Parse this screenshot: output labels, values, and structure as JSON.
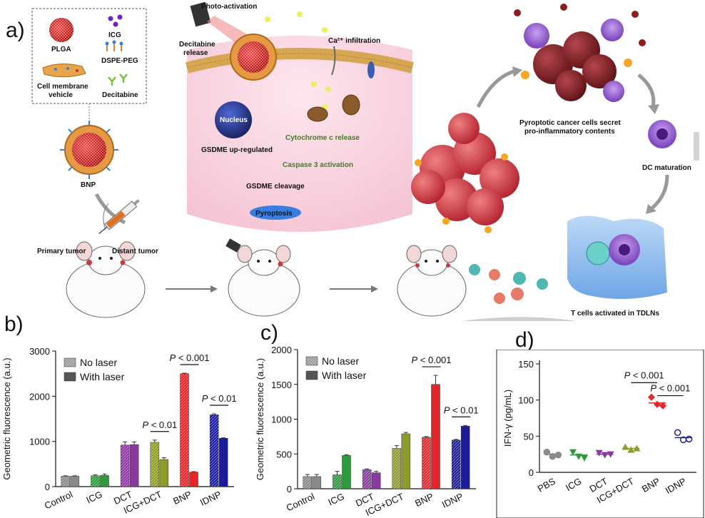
{
  "schematic": {
    "panel_label": "a)",
    "legend_box": {
      "items": [
        "PLGA",
        "ICG",
        "DSPE-PEG",
        "Cell membrane vehicle",
        "Decitabine"
      ]
    },
    "nanoparticle_label": "BNP",
    "mouse1": {
      "primary": "Primary tumor",
      "distant": "Distant tumor"
    },
    "cell_panel": {
      "photo": "Photo-activation",
      "decitabine": "Decitabine release",
      "calcium": "Ca²⁺ infiltration",
      "nucleus": "Nucleus",
      "gsdme_up": "GSDME up-regulated",
      "cytc": "Cytochrome c release",
      "casp": "Caspase 3 activation",
      "cleavage": "GSDME cleavage",
      "pyro": "Pyroptosis"
    },
    "cycle": {
      "secrete_1": "Pyroptotic cancer cells secret",
      "secrete_2": "pro-inflammatory contents",
      "dc": "DC maturation",
      "tcells": "T cells activated in TDLNs"
    }
  },
  "chart_data": [
    {
      "id": "b",
      "panel_label": "b)",
      "type": "bar",
      "ylabel": "Geometric fluorescence (a.u.)",
      "ylim": [
        0,
        3000
      ],
      "yticks": [
        0,
        1000,
        2000,
        3000
      ],
      "categories": [
        "Control",
        "ICG",
        "DCT",
        "ICG+DCT",
        "BNP",
        "IDNP"
      ],
      "series": [
        {
          "name": "No laser",
          "values": [
            230,
            240,
            920,
            980,
            2500,
            1590
          ],
          "errors": [
            10,
            20,
            70,
            50,
            10,
            20
          ]
        },
        {
          "name": "With laser",
          "values": [
            230,
            250,
            930,
            600,
            320,
            1070
          ],
          "errors": [
            10,
            30,
            60,
            40,
            10,
            10
          ]
        }
      ],
      "annotations": [
        {
          "text": "P < 0.01",
          "category": "ICG+DCT"
        },
        {
          "text": "P < 0.001",
          "category": "BNP"
        },
        {
          "text": "P < 0.01",
          "category": "IDNP"
        }
      ],
      "legend": "top-left"
    },
    {
      "id": "c",
      "panel_label": "c)",
      "type": "bar",
      "ylabel": "Geometric fluorescence (a.u.)",
      "ylim": [
        0,
        2000
      ],
      "yticks": [
        0,
        500,
        1000,
        1500,
        2000
      ],
      "categories": [
        "Control",
        "ICG",
        "DCT",
        "ICG+DCT",
        "BNP",
        "IDNP"
      ],
      "series": [
        {
          "name": "No laser",
          "values": [
            175,
            200,
            275,
            580,
            740,
            700
          ],
          "errors": [
            30,
            50,
            10,
            40,
            10,
            10
          ]
        },
        {
          "name": "With laser",
          "values": [
            175,
            480,
            230,
            790,
            1500,
            900
          ],
          "errors": [
            30,
            10,
            20,
            20,
            130,
            10
          ]
        }
      ],
      "annotations": [
        {
          "text": "P < 0.001",
          "category": "BNP"
        },
        {
          "text": "P < 0.01",
          "category": "IDNP"
        }
      ],
      "legend": "top-left"
    },
    {
      "id": "d",
      "panel_label": "d)",
      "type": "scatter",
      "ylabel": "IFN-γ (pg/mL)",
      "ylim": [
        0,
        150
      ],
      "yticks": [
        0,
        50,
        100,
        150
      ],
      "categories": [
        "PBS",
        "ICG",
        "DCT",
        "ICG+DCT",
        "BNP",
        "IDNP"
      ],
      "points": [
        [
          28,
          22,
          24
        ],
        [
          28,
          22,
          20
        ],
        [
          27,
          24,
          25
        ],
        [
          35,
          31,
          33
        ],
        [
          104,
          94,
          92
        ],
        [
          55,
          45,
          46
        ]
      ],
      "means": [
        25,
        24,
        25,
        33,
        96,
        48
      ],
      "annotations": [
        {
          "text": "P < 0.001",
          "from": "ICG+DCT",
          "to": "BNP"
        },
        {
          "text": "P < 0.001",
          "from": "BNP",
          "to": "IDNP"
        }
      ]
    }
  ],
  "colors": {
    "control": "#8a8a8a",
    "icg": "#2e9a3e",
    "dct": "#8a3a9e",
    "icgdct": "#8e9a2a",
    "bnp": "#e4262a",
    "idnp": "#1c1c9a"
  }
}
